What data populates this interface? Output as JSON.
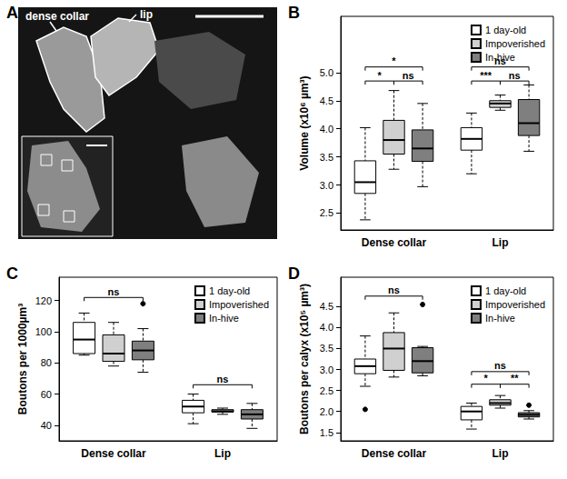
{
  "image_panel": {
    "title": "A",
    "labels": [
      "dense collar",
      "lip"
    ]
  },
  "chart_data": [
    {
      "type": "boxplot",
      "title": "B",
      "y_label": "Volume (x10⁶ µm³)",
      "categories": [
        "Dense collar",
        "Lip"
      ],
      "ylim": [
        2.2,
        6.0
      ],
      "yticks": [
        2.5,
        {
          "value": 3,
          "label": "3.0"
        },
        3.5,
        {
          "value": 4,
          "label": "4.0"
        },
        4.5,
        {
          "value": 5,
          "label": "5.0"
        }
      ],
      "grid": false,
      "legend": "top-right",
      "series": [
        {
          "name": "1 day-old",
          "color": "#ffffff",
          "values": [
            {
              "min": 2.38,
              "q1": 2.85,
              "median": 3.05,
              "q3": 3.43,
              "max": 4.02,
              "outliers": []
            },
            {
              "min": 3.2,
              "q1": 3.62,
              "median": 3.82,
              "q3": 4.02,
              "max": 4.28,
              "outliers": []
            }
          ]
        },
        {
          "name": "Impoverished",
          "color": "#d0d0d0",
          "values": [
            {
              "min": 3.28,
              "q1": 3.55,
              "median": 3.8,
              "q3": 4.15,
              "max": 4.68,
              "outliers": []
            },
            {
              "min": 4.33,
              "q1": 4.38,
              "median": 4.45,
              "q3": 4.5,
              "max": 4.6,
              "outliers": []
            }
          ]
        },
        {
          "name": "In-hive",
          "color": "#7f7f7f",
          "values": [
            {
              "min": 2.97,
              "q1": 3.42,
              "median": 3.65,
              "q3": 3.98,
              "max": 4.45,
              "outliers": []
            },
            {
              "min": 3.6,
              "q1": 3.88,
              "median": 4.1,
              "q3": 4.52,
              "max": 4.78,
              "outliers": []
            }
          ]
        }
      ],
      "annotations": [
        {
          "category": "Dense collar",
          "from": "1 day-old",
          "to": "In-hive",
          "y": 5.1,
          "text": "*"
        },
        {
          "category": "Dense collar",
          "from": "1 day-old",
          "to": "Impoverished",
          "y": 4.85,
          "text": "*"
        },
        {
          "category": "Dense collar",
          "from": "Impoverished",
          "to": "In-hive",
          "y": 4.85,
          "text": "ns"
        },
        {
          "category": "Lip",
          "from": "1 day-old",
          "to": "In-hive",
          "y": 5.1,
          "text": "ns"
        },
        {
          "category": "Lip",
          "from": "1 day-old",
          "to": "Impoverished",
          "y": 4.85,
          "text": "***"
        },
        {
          "category": "Lip",
          "from": "Impoverished",
          "to": "In-hive",
          "y": 4.85,
          "text": "ns"
        }
      ]
    },
    {
      "type": "boxplot",
      "title": "C",
      "y_label": "Boutons per 1000µm³",
      "categories": [
        "Dense collar",
        "Lip"
      ],
      "ylim": [
        30,
        135
      ],
      "yticks": [
        40,
        60,
        80,
        100,
        120
      ],
      "grid": false,
      "legend": "top-right",
      "series": [
        {
          "name": "1 day-old",
          "color": "#ffffff",
          "values": [
            {
              "min": 85,
              "q1": 86,
              "median": 95,
              "q3": 106,
              "max": 112,
              "outliers": []
            },
            {
              "min": 41,
              "q1": 48,
              "median": 52,
              "q3": 56,
              "max": 60,
              "outliers": []
            }
          ]
        },
        {
          "name": "Impoverished",
          "color": "#d0d0d0",
          "values": [
            {
              "min": 78,
              "q1": 81,
              "median": 86,
              "q3": 98,
              "max": 106,
              "outliers": []
            },
            {
              "min": 47,
              "q1": 48.5,
              "median": 49,
              "q3": 50,
              "max": 51,
              "outliers": []
            }
          ]
        },
        {
          "name": "In-hive",
          "color": "#7f7f7f",
          "values": [
            {
              "min": 74,
              "q1": 82,
              "median": 88,
              "q3": 94,
              "max": 102,
              "outliers": [
                118
              ]
            },
            {
              "min": 38,
              "q1": 44,
              "median": 47,
              "q3": 50,
              "max": 54,
              "outliers": []
            }
          ]
        }
      ],
      "annotations": [
        {
          "category": "Dense collar",
          "from": "1 day-old",
          "to": "In-hive",
          "y": 122,
          "text": "ns"
        },
        {
          "category": "Lip",
          "from": "1 day-old",
          "to": "In-hive",
          "y": 66,
          "text": "ns"
        }
      ]
    },
    {
      "type": "boxplot",
      "title": "D",
      "y_label": "Boutons per calyx (x10⁵ µm³)",
      "categories": [
        "Dense collar",
        "Lip"
      ],
      "ylim": [
        1.3,
        5.2
      ],
      "yticks": [
        1.5,
        {
          "value": 2,
          "label": "2.0"
        },
        2.5,
        {
          "value": 3,
          "label": "3.0"
        },
        3.5,
        {
          "value": 4,
          "label": "4.0"
        },
        4.5
      ],
      "grid": false,
      "legend": "top-right",
      "series": [
        {
          "name": "1 day-old",
          "color": "#ffffff",
          "values": [
            {
              "min": 2.6,
              "q1": 2.9,
              "median": 3.08,
              "q3": 3.25,
              "max": 3.8,
              "outliers": [
                2.05
              ]
            },
            {
              "min": 1.58,
              "q1": 1.8,
              "median": 2.0,
              "q3": 2.12,
              "max": 2.2,
              "outliers": []
            }
          ]
        },
        {
          "name": "Impoverished",
          "color": "#d0d0d0",
          "values": [
            {
              "min": 2.82,
              "q1": 2.98,
              "median": 3.5,
              "q3": 3.88,
              "max": 4.35,
              "outliers": []
            },
            {
              "min": 2.08,
              "q1": 2.15,
              "median": 2.2,
              "q3": 2.28,
              "max": 2.38,
              "outliers": []
            }
          ]
        },
        {
          "name": "In-hive",
          "color": "#7f7f7f",
          "values": [
            {
              "min": 2.85,
              "q1": 2.92,
              "median": 3.2,
              "q3": 3.52,
              "max": 3.55,
              "outliers": [
                4.55
              ]
            },
            {
              "min": 1.82,
              "q1": 1.87,
              "median": 1.92,
              "q3": 1.97,
              "max": 2.02,
              "outliers": [
                2.15
              ]
            }
          ]
        }
      ],
      "annotations": [
        {
          "category": "Dense collar",
          "from": "1 day-old",
          "to": "In-hive",
          "y": 4.75,
          "text": "ns"
        },
        {
          "category": "Lip",
          "from": "1 day-old",
          "to": "In-hive",
          "y": 2.95,
          "text": "ns"
        },
        {
          "category": "Lip",
          "from": "1 day-old",
          "to": "Impoverished",
          "y": 2.65,
          "text": "*"
        },
        {
          "category": "Lip",
          "from": "Impoverished",
          "to": "In-hive",
          "y": 2.65,
          "text": "**"
        }
      ]
    }
  ]
}
